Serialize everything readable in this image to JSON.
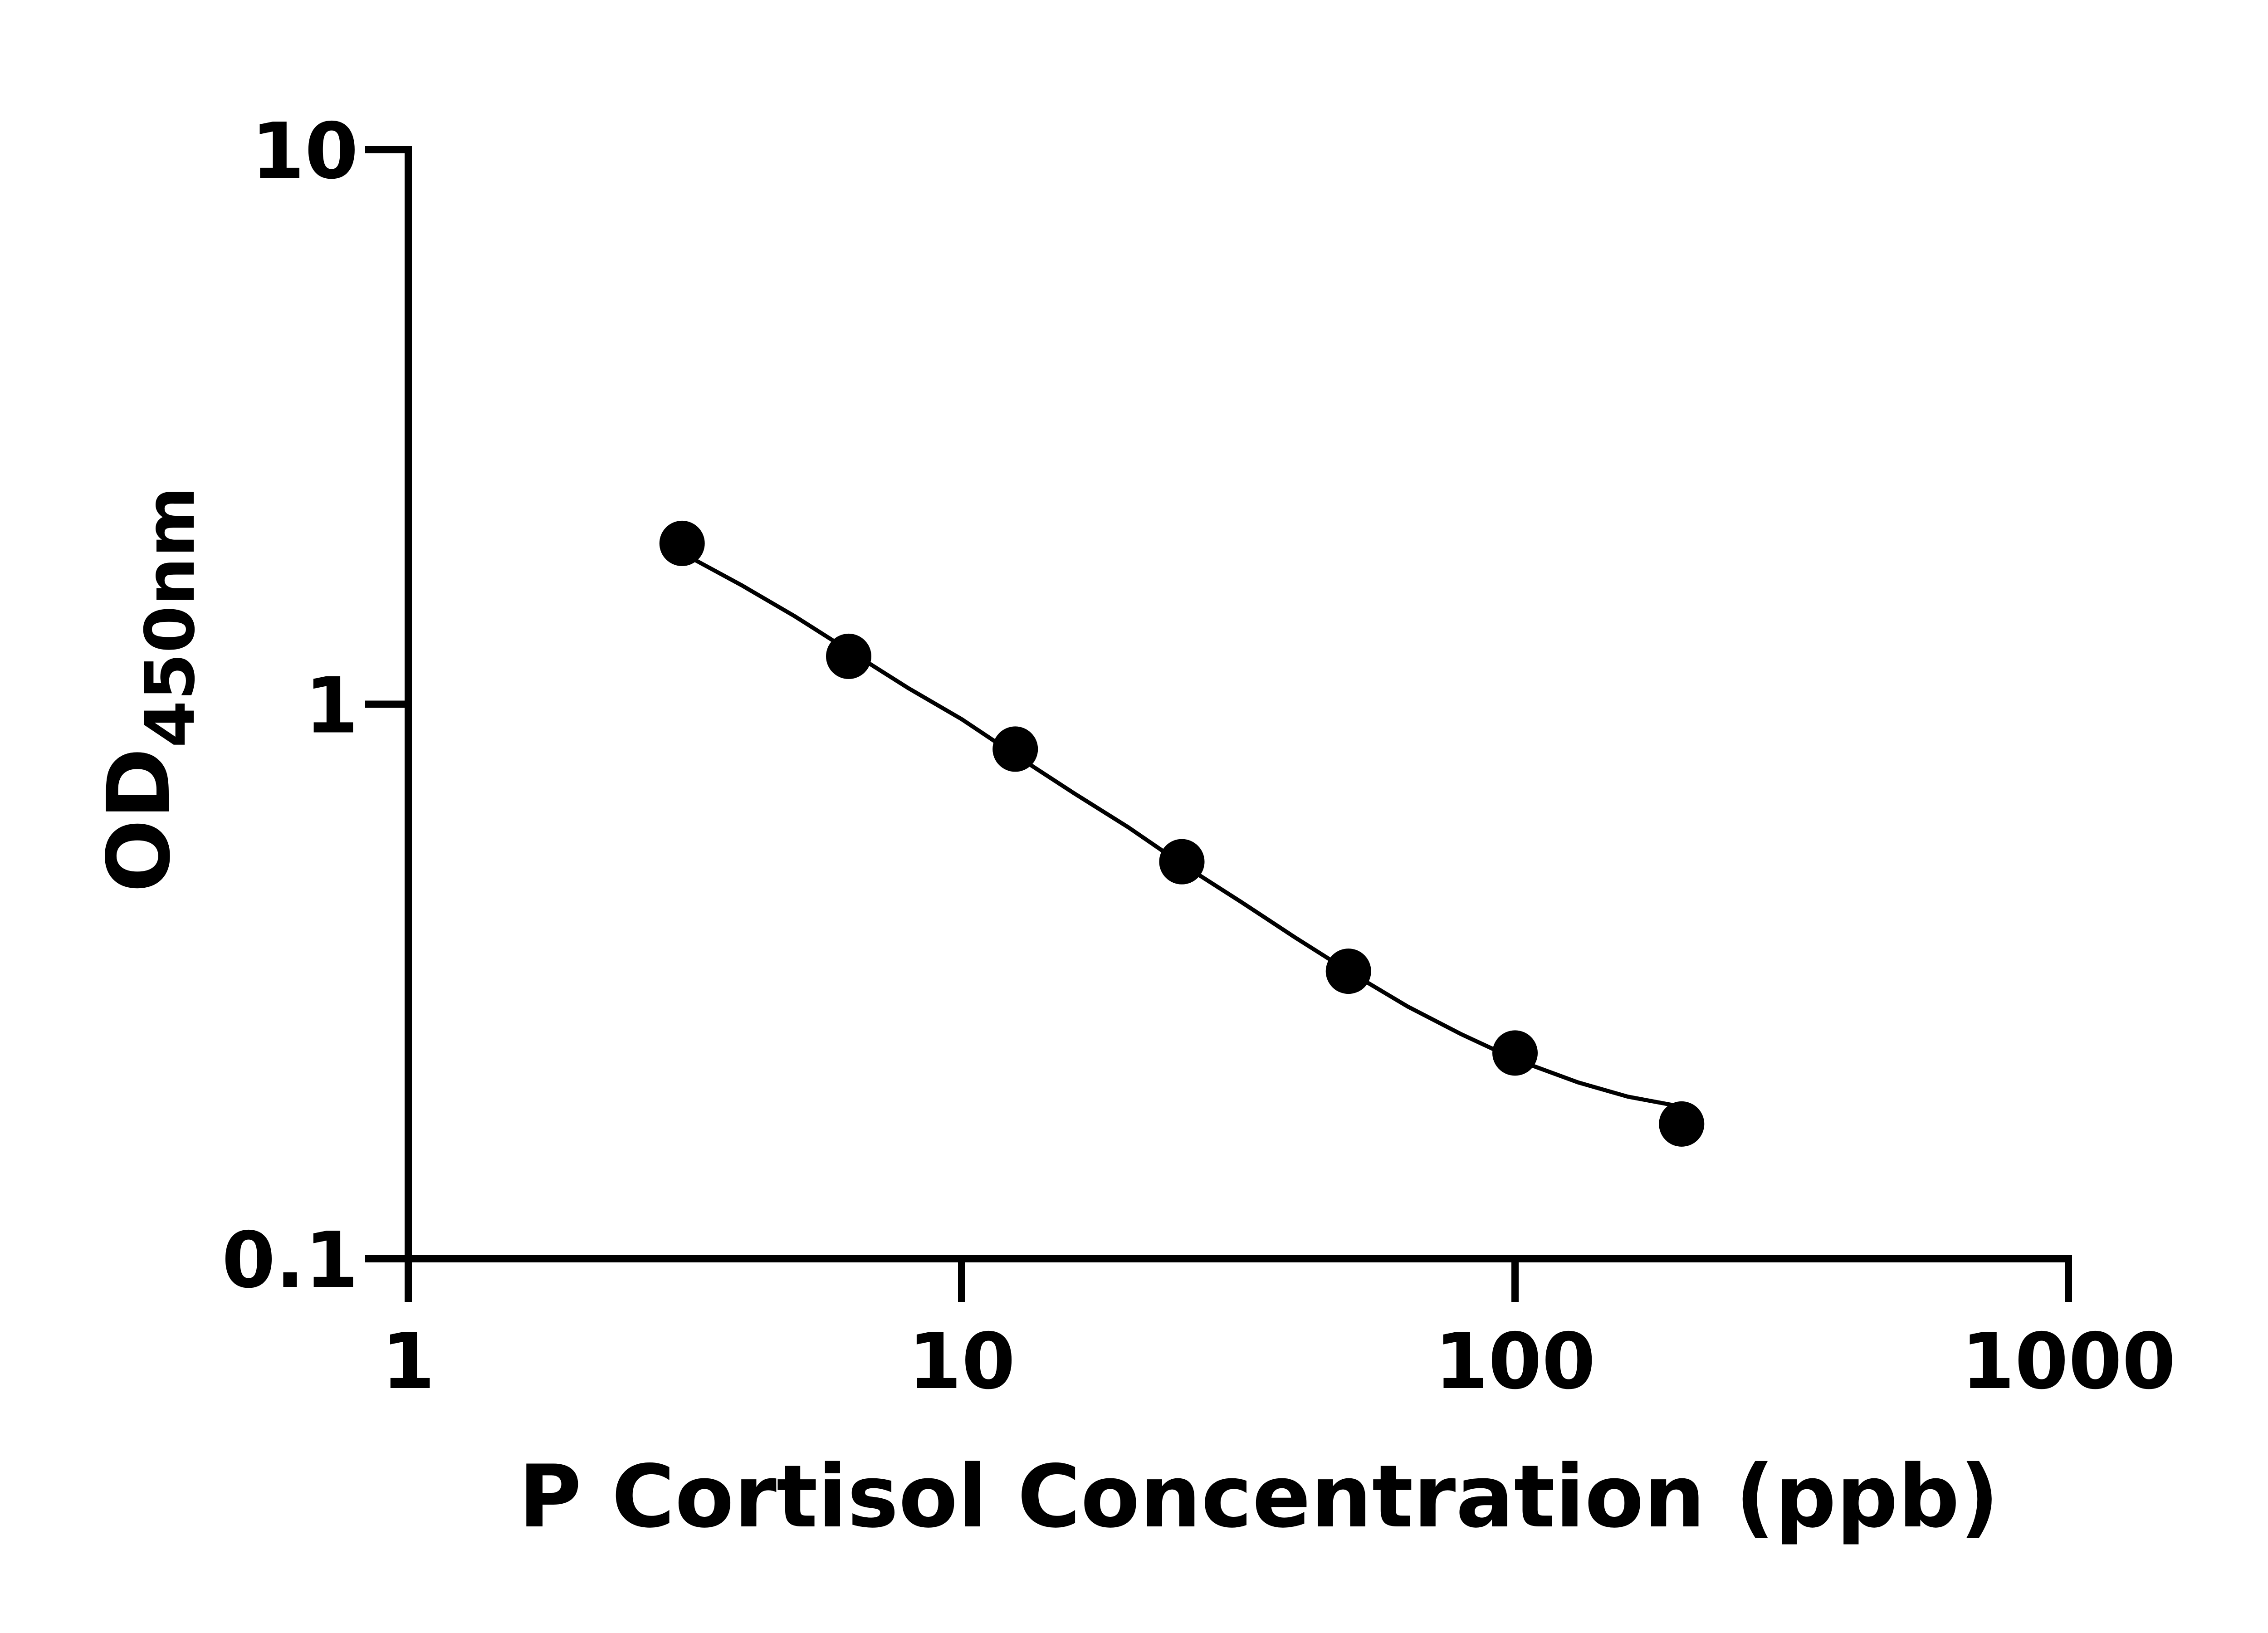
{
  "colors": {
    "axis": "#000000",
    "marker": "#000000",
    "line": "#000000",
    "background": "#ffffff"
  },
  "chart_data": {
    "type": "scatter",
    "title": "",
    "xlabel": "P Cortisol Concentration (ppb)",
    "ylabel_main": "OD",
    "ylabel_sub": "450nm",
    "xscale": "log",
    "yscale": "log",
    "xlim": [
      1,
      1000
    ],
    "ylim": [
      0.1,
      10
    ],
    "xticks": [
      1,
      10,
      100,
      1000
    ],
    "xtick_labels": [
      "1",
      "10",
      "100",
      "1000"
    ],
    "yticks": [
      0.1,
      1,
      10
    ],
    "ytick_labels": [
      "0.1",
      "1",
      "10"
    ],
    "grid": false,
    "legend": "none",
    "series": [
      {
        "marker": "circle",
        "x": [
          3.125,
          6.25,
          12.5,
          25,
          50,
          100,
          200
        ],
        "y": [
          1.95,
          1.22,
          0.83,
          0.52,
          0.33,
          0.235,
          0.175
        ]
      }
    ],
    "fit_curve": {
      "type": "4PL",
      "x": [
        3.2,
        4,
        5,
        6.25,
        8,
        10,
        12.5,
        16,
        20,
        25,
        32,
        40,
        50,
        64,
        80,
        100,
        130,
        160,
        200
      ],
      "y": [
        1.85,
        1.64,
        1.44,
        1.25,
        1.07,
        0.94,
        0.81,
        0.69,
        0.6,
        0.515,
        0.44,
        0.38,
        0.33,
        0.285,
        0.254,
        0.229,
        0.208,
        0.196,
        0.188
      ]
    }
  }
}
